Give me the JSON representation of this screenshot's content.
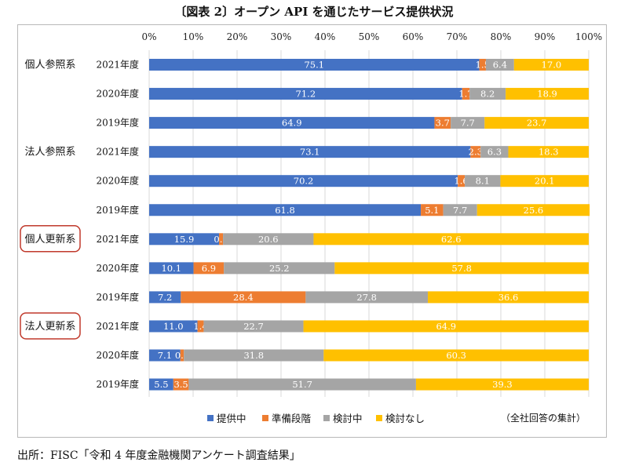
{
  "title": "〔図表 2〕オープン API を通じたサービス提供状況",
  "source": "出所：FISC「令和 4 年度金融機関アンケート調査結果」",
  "colors": {
    "提供中": "#4472c4",
    "準備段階": "#ed7d31",
    "検討中": "#a5a5a5",
    "検討なし": "#ffc000",
    "highlight_box": "#c0392b",
    "grid": "#d9d9d9"
  },
  "chart_data": {
    "type": "bar",
    "orientation": "horizontal",
    "stacked": true,
    "note": "（全社回答の集計）",
    "x_ticks": [
      "0%",
      "10%",
      "20%",
      "30%",
      "40%",
      "50%",
      "60%",
      "70%",
      "80%",
      "90%",
      "100%"
    ],
    "xlim": [
      0,
      100
    ],
    "legend_position": "bottom",
    "series_names": [
      "提供中",
      "準備段階",
      "検討中",
      "検討なし"
    ],
    "groups": [
      {
        "label": "個人参照系",
        "highlighted": false,
        "rows": [
          {
            "year": "2021年度",
            "values": [
              75.1,
              1.5,
              6.4,
              17.0
            ],
            "labels": [
              "75.1",
              "1.5",
              "6.4",
              "17.0"
            ]
          },
          {
            "year": "2020年度",
            "values": [
              71.2,
              1.7,
              8.2,
              18.9
            ],
            "labels": [
              "71.2",
              "1.7",
              "8.2",
              "18.9"
            ]
          },
          {
            "year": "2019年度",
            "values": [
              64.9,
              3.7,
              7.7,
              23.7
            ],
            "labels": [
              "64.9",
              "3.7",
              "7.7",
              "23.7"
            ]
          }
        ]
      },
      {
        "label": "法人参照系",
        "highlighted": false,
        "rows": [
          {
            "year": "2021年度",
            "values": [
              73.1,
              2.3,
              6.3,
              18.3
            ],
            "labels": [
              "73.1",
              "2.3",
              "6.3",
              "18.3"
            ]
          },
          {
            "year": "2020年度",
            "values": [
              70.2,
              1.6,
              8.1,
              20.1
            ],
            "labels": [
              "70.2",
              "1.6",
              "8.1",
              "20.1"
            ]
          },
          {
            "year": "2019年度",
            "values": [
              61.8,
              5.1,
              7.7,
              25.6
            ],
            "labels": [
              "61.8",
              "5.1",
              "7.7",
              "25.6"
            ]
          }
        ]
      },
      {
        "label": "個人更新系",
        "highlighted": true,
        "rows": [
          {
            "year": "2021年度",
            "values": [
              15.9,
              0.9,
              20.6,
              62.6
            ],
            "labels": [
              "15.9",
              "0.9",
              "20.6",
              "62.6"
            ]
          },
          {
            "year": "2020年度",
            "values": [
              10.1,
              6.9,
              25.2,
              57.8
            ],
            "labels": [
              "10.1",
              "6.9",
              "25.2",
              "57.8"
            ]
          },
          {
            "year": "2019年度",
            "values": [
              7.2,
              28.4,
              27.8,
              36.6
            ],
            "labels": [
              "7.2",
              "28.4",
              "27.8",
              "36.6"
            ]
          }
        ]
      },
      {
        "label": "法人更新系",
        "highlighted": true,
        "rows": [
          {
            "year": "2021年度",
            "values": [
              11.0,
              1.4,
              22.7,
              64.9
            ],
            "labels": [
              "11.0",
              "1.4",
              "22.7",
              "64.9"
            ]
          },
          {
            "year": "2020年度",
            "values": [
              7.1,
              0.8,
              31.8,
              60.3
            ],
            "labels": [
              "7.1",
              "0.8",
              "31.8",
              "60.3"
            ]
          },
          {
            "year": "2019年度",
            "values": [
              5.5,
              3.5,
              51.7,
              39.3
            ],
            "labels": [
              "5.5",
              "3.5",
              "51.7",
              "39.3"
            ]
          }
        ]
      }
    ]
  }
}
